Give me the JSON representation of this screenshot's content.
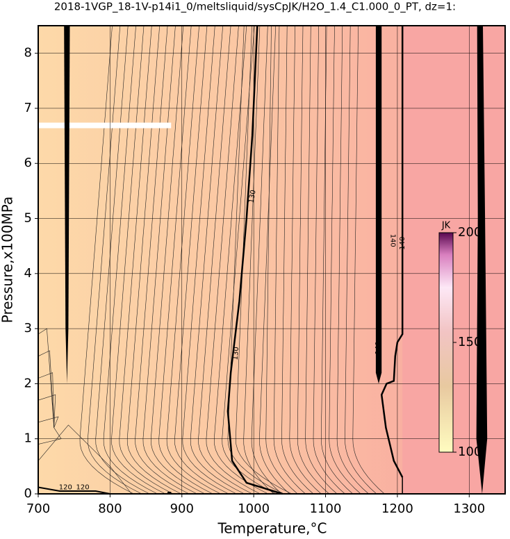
{
  "chart_data": {
    "type": "contour",
    "title": "2018-1VGP_18-1V-p14i1_0/meltsliquid/sysCpJK/H2O_1.4_C1.000_0_PT, dz=1:",
    "x_label": "Temperature,°C",
    "y_label": "Pressure,x100MPa",
    "xlim": [
      700,
      1350
    ],
    "ylim": [
      0,
      8.5
    ],
    "xticks": [
      700,
      800,
      900,
      1000,
      1100,
      1200,
      1300
    ],
    "yticks": [
      0,
      1,
      2,
      3,
      4,
      5,
      6,
      7,
      8
    ],
    "grid": true,
    "contour_levels": [
      130,
      130,
      140,
      140,
      140,
      120,
      120
    ],
    "colorbar": {
      "label": "JK",
      "lim": [
        100,
        200
      ],
      "ticks": [
        100,
        150,
        200
      ]
    }
  }
}
